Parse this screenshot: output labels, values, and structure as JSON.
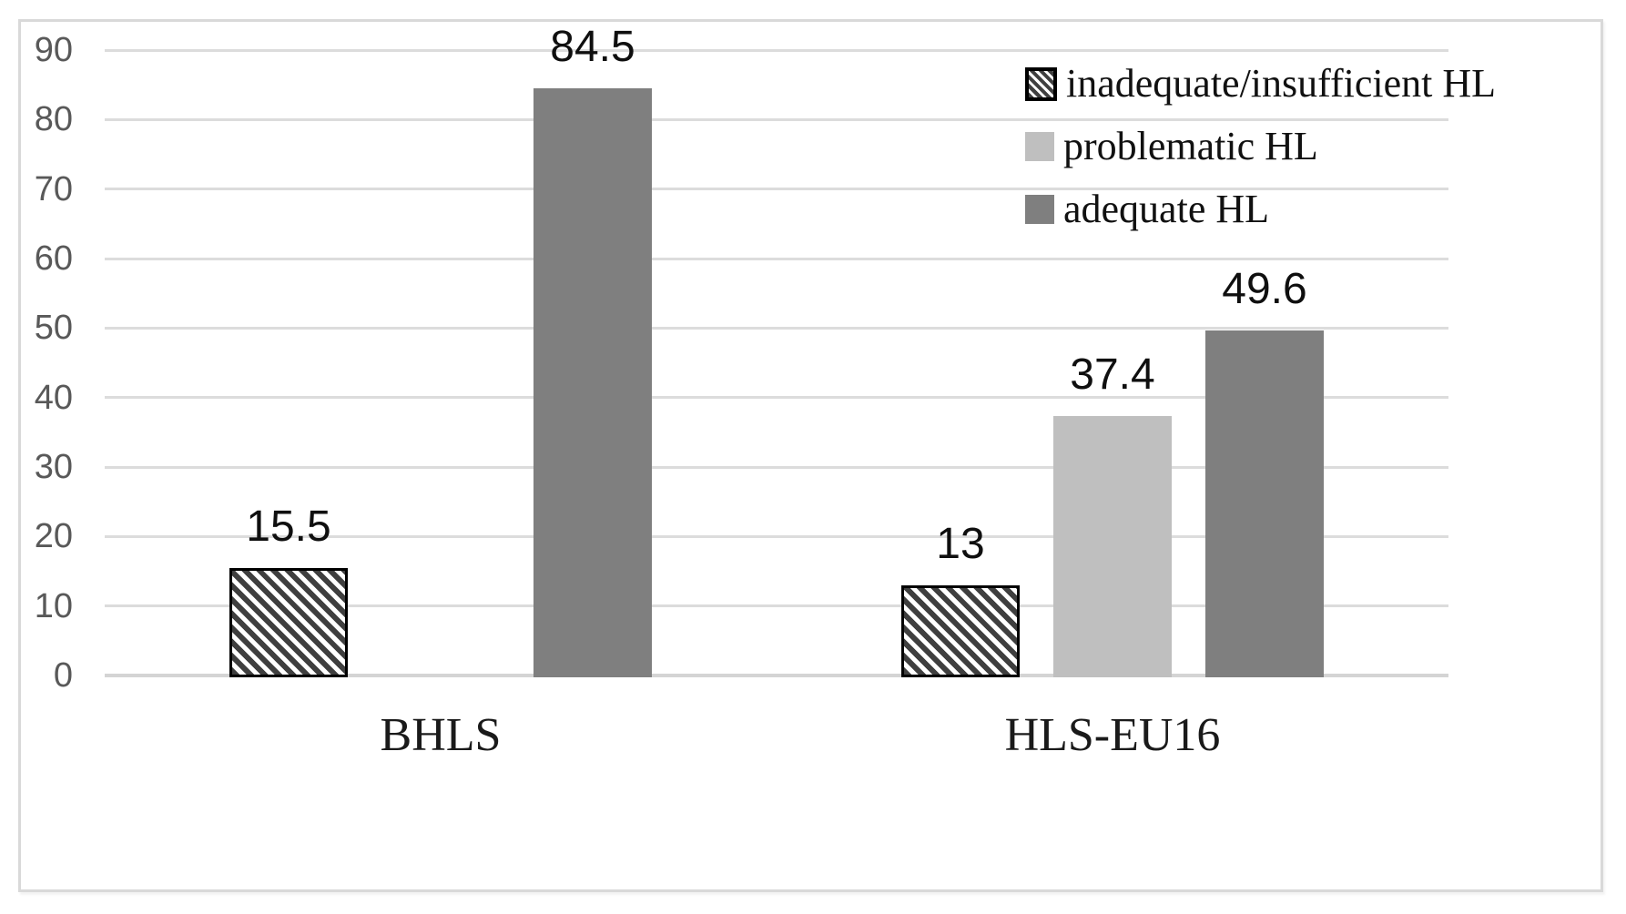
{
  "chart_data": {
    "type": "bar",
    "categories": [
      "BHLS",
      "HLS-EU16"
    ],
    "series": [
      {
        "name": "inadequate/insufficient HL",
        "style": "hatched",
        "values": [
          15.5,
          13
        ],
        "labels": [
          "15.5",
          "13"
        ]
      },
      {
        "name": "problematic HL",
        "style": "solid",
        "color": "#bfbfbf",
        "values": [
          null,
          37.4
        ],
        "labels": [
          null,
          "37.4"
        ]
      },
      {
        "name": "adequate HL",
        "style": "solid",
        "color": "#7f7f7f",
        "values": [
          84.5,
          49.6
        ],
        "labels": [
          "84.5",
          "49.6"
        ]
      }
    ],
    "title": "",
    "xlabel": "",
    "ylabel": "",
    "ylim": [
      0,
      90
    ],
    "yticks": [
      0,
      10,
      20,
      30,
      40,
      50,
      60,
      70,
      80,
      90
    ],
    "grid": true,
    "legend_position": "top-right"
  },
  "colors": {
    "grid": "#dcdcdc",
    "axis_line": "#d4d4d4",
    "figure_border": "#d9d9d9",
    "tick_text": "#595959",
    "data_label_text": "#0f0f0f",
    "category_text": "#1a1a1a",
    "legend_text": "#111111",
    "bar_problematic": "#bfbfbf",
    "bar_adequate": "#7f7f7f",
    "hatch_foreground": "#3f3f3f",
    "hatch_background": "#ffffff"
  }
}
